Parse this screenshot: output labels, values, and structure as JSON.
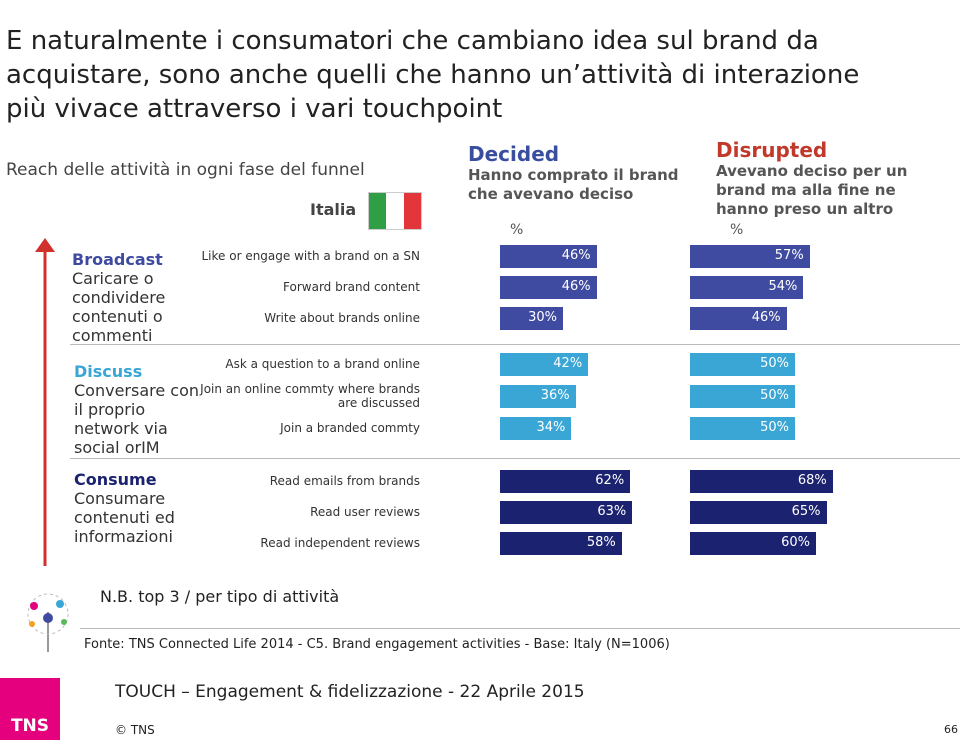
{
  "title": [
    "E naturalmente i consumatori che cambiano idea sul brand da",
    "acquistare, sono anche quelli che hanno un’attività di interazione",
    "più vivace attraverso i vari touchpoint"
  ],
  "subtitle": "Reach delle attività in ogni fase del funnel",
  "country": "Italia",
  "chart_data": {
    "type": "bar",
    "groups": [
      {
        "name": "Broadcast",
        "description": "Caricare o condividere contenuti o commenti",
        "color": "#3f4ba0"
      },
      {
        "name": "Discuss",
        "description": "Conversare con il proprio network via social orIM",
        "color": "#3aa6d6"
      },
      {
        "name": "Consume",
        "description": "Consumare contenuti ed informazioni",
        "color": "#1b2270"
      }
    ],
    "categories": [
      "Like or engage with a brand on a SN",
      "Forward brand content",
      "Write about brands online",
      "Ask a question to a brand online",
      "Join an online commty where brands are discussed",
      "Join a branded commty",
      "Read emails from brands",
      "Read user reviews",
      "Read independent reviews"
    ],
    "series": [
      {
        "name": "Decided",
        "description": "Hanno comprato il brand che avevano deciso",
        "unit": "%",
        "color": "#3a4ea0",
        "values": [
          46,
          46,
          30,
          42,
          36,
          34,
          62,
          63,
          58
        ],
        "value_labels": [
          "46%",
          "46%",
          "30%",
          "42%",
          "36%",
          "34%",
          "62%",
          "63%",
          "58%"
        ]
      },
      {
        "name": "Disrupted",
        "description": "Avevano deciso per un brand ma alla fine ne hanno preso un altro",
        "unit": "%",
        "color": "#c0392b",
        "values": [
          57,
          54,
          46,
          50,
          50,
          50,
          68,
          65,
          60
        ],
        "value_labels": [
          "57%",
          "54%",
          "46%",
          "50%",
          "50%",
          "50%",
          "68%",
          "65%",
          "60%"
        ]
      }
    ]
  },
  "note": "N.B. top 3 / per tipo di attività",
  "source": "Fonte: TNS Connected Life 2014 - C5. Brand engagement activities  - Base: Italy (N=1006)",
  "footer": "TOUCH – Engagement & fidelizzazione - 22 Aprile 2015",
  "copyright": "© TNS",
  "logo": "TNS",
  "page_number": "66"
}
